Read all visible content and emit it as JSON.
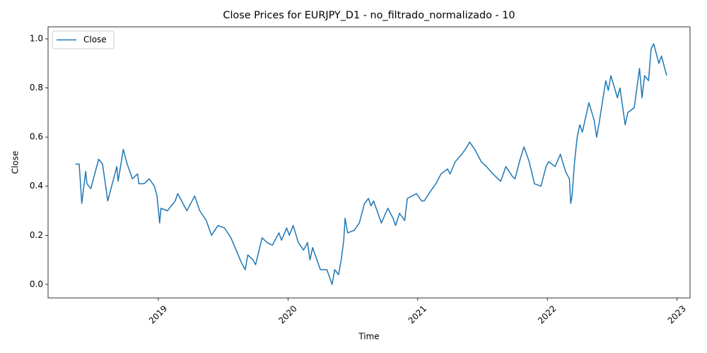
{
  "chart_data": {
    "type": "line",
    "title": "Close Prices for EURJPY_D1 - no_filtrado_normalizado - 10",
    "x_label": "Time",
    "y_label": "Close",
    "x": [
      2018.36,
      2018.39,
      2018.41,
      2018.44,
      2018.45,
      2018.48,
      2018.51,
      2018.54,
      2018.57,
      2018.6,
      2018.61,
      2018.65,
      2018.68,
      2018.69,
      2018.73,
      2018.76,
      2018.8,
      2018.84,
      2018.85,
      2018.89,
      2018.93,
      2018.97,
      2018.99,
      2019.01,
      2019.02,
      2019.07,
      2019.13,
      2019.15,
      2019.2,
      2019.22,
      2019.28,
      2019.32,
      2019.37,
      2019.41,
      2019.46,
      2019.51,
      2019.56,
      2019.6,
      2019.64,
      2019.67,
      2019.69,
      2019.73,
      2019.75,
      2019.8,
      2019.84,
      2019.88,
      2019.93,
      2019.95,
      2019.99,
      2020.01,
      2020.04,
      2020.08,
      2020.12,
      2020.15,
      2020.17,
      2020.19,
      2020.23,
      2020.25,
      2020.3,
      2020.34,
      2020.36,
      2020.39,
      2020.41,
      2020.43,
      2020.44,
      2020.46,
      2020.51,
      2020.55,
      2020.59,
      2020.62,
      2020.64,
      2020.66,
      2020.7,
      2020.72,
      2020.77,
      2020.81,
      2020.83,
      2020.86,
      2020.9,
      2020.92,
      2020.99,
      2021.03,
      2021.05,
      2021.1,
      2021.14,
      2021.18,
      2021.23,
      2021.25,
      2021.29,
      2021.34,
      2021.38,
      2021.4,
      2021.44,
      2021.49,
      2021.53,
      2021.58,
      2021.62,
      2021.64,
      2021.68,
      2021.73,
      2021.75,
      2021.79,
      2021.82,
      2021.86,
      2021.9,
      2021.95,
      2021.99,
      2022.01,
      2022.06,
      2022.1,
      2022.14,
      2022.17,
      2022.18,
      2022.19,
      2022.21,
      2022.23,
      2022.25,
      2022.27,
      2022.32,
      2022.36,
      2022.38,
      2022.4,
      2022.45,
      2022.47,
      2022.49,
      2022.54,
      2022.56,
      2022.6,
      2022.62,
      2022.67,
      2022.71,
      2022.73,
      2022.75,
      2022.78,
      2022.8,
      2022.82,
      2022.86,
      2022.88,
      2022.92
    ],
    "series": [
      {
        "name": "Close",
        "color": "#1f77b4",
        "values": [
          0.49,
          0.49,
          0.33,
          0.46,
          0.41,
          0.39,
          0.45,
          0.51,
          0.49,
          0.38,
          0.34,
          0.42,
          0.48,
          0.42,
          0.55,
          0.49,
          0.43,
          0.45,
          0.41,
          0.41,
          0.43,
          0.4,
          0.36,
          0.25,
          0.31,
          0.3,
          0.34,
          0.37,
          0.32,
          0.3,
          0.36,
          0.3,
          0.26,
          0.2,
          0.24,
          0.23,
          0.19,
          0.14,
          0.09,
          0.06,
          0.12,
          0.1,
          0.08,
          0.19,
          0.17,
          0.16,
          0.21,
          0.18,
          0.23,
          0.2,
          0.24,
          0.17,
          0.14,
          0.17,
          0.1,
          0.15,
          0.09,
          0.06,
          0.06,
          0.0,
          0.06,
          0.04,
          0.1,
          0.18,
          0.27,
          0.21,
          0.22,
          0.25,
          0.33,
          0.35,
          0.32,
          0.34,
          0.28,
          0.25,
          0.31,
          0.27,
          0.24,
          0.29,
          0.26,
          0.35,
          0.37,
          0.34,
          0.34,
          0.38,
          0.41,
          0.45,
          0.47,
          0.45,
          0.5,
          0.53,
          0.56,
          0.58,
          0.55,
          0.5,
          0.48,
          0.45,
          0.43,
          0.42,
          0.48,
          0.44,
          0.43,
          0.51,
          0.56,
          0.5,
          0.41,
          0.4,
          0.48,
          0.5,
          0.48,
          0.53,
          0.46,
          0.43,
          0.33,
          0.36,
          0.5,
          0.6,
          0.65,
          0.62,
          0.74,
          0.67,
          0.6,
          0.66,
          0.83,
          0.79,
          0.85,
          0.76,
          0.8,
          0.65,
          0.7,
          0.72,
          0.88,
          0.76,
          0.85,
          0.83,
          0.96,
          0.98,
          0.9,
          0.93,
          0.85
        ]
      }
    ],
    "xlim": [
      2018.15,
      2023.1
    ],
    "xticks": [
      2019,
      2020,
      2021,
      2022,
      2023
    ],
    "ylim": [
      -0.055,
      1.049
    ],
    "yticks": [
      {
        "value": 0,
        "label": "0.0"
      },
      0.2,
      0.4,
      0.6,
      0.8,
      {
        "value": 1,
        "label": "1.0"
      }
    ],
    "legend": "upper left",
    "grid": false
  }
}
